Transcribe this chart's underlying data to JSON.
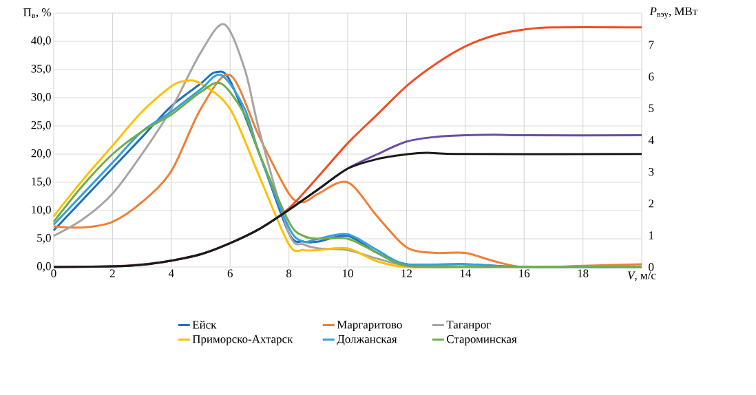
{
  "chart_data": {
    "type": "line",
    "xlabel": "*V*, м/с",
    "ylabel": "П$_{в}$, %",
    "y2label": "*P*$_{вэу}$, МВт",
    "xlim": [
      0,
      20
    ],
    "ylim": [
      0,
      45
    ],
    "y2lim": [
      0,
      8
    ],
    "xticks": [
      0,
      2,
      4,
      6,
      8,
      10,
      12,
      14,
      16,
      18,
      {
        "value": 20,
        "label": null
      }
    ],
    "yticks": [
      {
        "value": 0,
        "label": "0,0"
      },
      {
        "value": 5,
        "label": "5,0"
      },
      {
        "value": 10,
        "label": "10,0"
      },
      {
        "value": 15,
        "label": "15,0"
      },
      {
        "value": 20,
        "label": "20,0"
      },
      {
        "value": 25,
        "label": "25,0"
      },
      {
        "value": 30,
        "label": "30,0"
      },
      {
        "value": 35,
        "label": "35,0"
      },
      {
        "value": 40,
        "label": "40,0"
      },
      {
        "value": 45,
        "label": null
      }
    ],
    "y2ticks": [
      0,
      1,
      2,
      3,
      4,
      5,
      6,
      7
    ],
    "grid": true,
    "legend": "bottom",
    "marker": "none",
    "line_style": "solid",
    "series": [
      {
        "name": "Ейск",
        "color": "#1f6fbf",
        "x": [
          0,
          1,
          2,
          3,
          4,
          5,
          5.5,
          6,
          7,
          8,
          8.5,
          9,
          10,
          11,
          12,
          14,
          16,
          20
        ],
        "values": [
          6.5,
          12,
          17.5,
          23,
          28.5,
          32.5,
          34.5,
          33,
          20,
          6,
          4.5,
          4.5,
          5.5,
          2.5,
          0.5,
          0.5,
          0,
          0
        ]
      },
      {
        "name": "Маргаритово",
        "color": "#f07f35",
        "x": [
          0,
          1,
          2,
          3,
          4,
          5,
          6,
          7,
          8,
          8.5,
          9,
          10,
          11,
          12,
          13,
          14,
          15,
          16,
          18,
          20
        ],
        "values": [
          7.2,
          7,
          8,
          11.5,
          17,
          28,
          34,
          23,
          13,
          11.5,
          13,
          15,
          9,
          3.5,
          2.5,
          2.5,
          1,
          0,
          0.2,
          0.5
        ]
      },
      {
        "name": "Таганрог",
        "color": "#a5a5a5",
        "x": [
          0,
          1,
          2,
          3,
          4,
          5,
          5.8,
          6.5,
          7,
          8,
          8.5,
          9,
          10,
          11,
          12,
          14,
          16,
          20
        ],
        "values": [
          5.5,
          8.5,
          13,
          20,
          28,
          38,
          43,
          35,
          24,
          6,
          4,
          3.3,
          3,
          1.5,
          0.3,
          0,
          0,
          0
        ]
      },
      {
        "name": "Приморско-Ахтарск",
        "color": "#ffc000",
        "x": [
          0,
          1,
          2,
          3,
          4,
          4.5,
          5,
          6,
          7,
          8,
          8.5,
          9,
          10,
          11,
          12,
          14
        ],
        "values": [
          9,
          15.5,
          21.5,
          27.5,
          32,
          33,
          32.5,
          28,
          16,
          4,
          3,
          3,
          3.3,
          1,
          0,
          0
        ]
      },
      {
        "name": "Должанская",
        "color": "#36a0dc",
        "x": [
          0,
          1,
          2,
          3,
          4,
          5,
          5.7,
          6.5,
          7,
          8,
          8.5,
          9,
          10,
          11,
          12,
          14,
          16,
          20
        ],
        "values": [
          7.5,
          13,
          18.5,
          24,
          27.5,
          31.5,
          34,
          28,
          20,
          7,
          4.5,
          5,
          5.8,
          3,
          0.5,
          0.5,
          0,
          0
        ]
      },
      {
        "name": "Староминская",
        "color": "#70ad47",
        "x": [
          0,
          1,
          2,
          3,
          4,
          5,
          5.7,
          6.5,
          7,
          8,
          8.5,
          9,
          10,
          11,
          12,
          14,
          16,
          20
        ],
        "values": [
          8,
          14.5,
          20,
          24,
          27,
          31,
          32.5,
          27,
          20,
          8,
          5.5,
          5,
          5,
          2.5,
          0.2,
          0,
          0,
          0
        ]
      },
      {
        "color": "#f04e23",
        "axis": "y2",
        "x": [
          0,
          2,
          3,
          4,
          5,
          6,
          7,
          8,
          9,
          10,
          11,
          12,
          13,
          14,
          15,
          16,
          17,
          20
        ],
        "values": [
          0,
          0.02,
          0.08,
          0.2,
          0.4,
          0.75,
          1.2,
          1.85,
          2.85,
          3.9,
          4.8,
          5.7,
          6.4,
          6.95,
          7.3,
          7.48,
          7.55,
          7.55
        ]
      },
      {
        "color": "#6a4ca0",
        "axis": "y2",
        "x": [
          0,
          2,
          3,
          4,
          5,
          6,
          7,
          8,
          9,
          10,
          11,
          12,
          13,
          14,
          15,
          16,
          20
        ],
        "values": [
          0,
          0.02,
          0.07,
          0.2,
          0.4,
          0.75,
          1.2,
          1.8,
          2.45,
          3.1,
          3.55,
          3.95,
          4.1,
          4.15,
          4.17,
          4.15,
          4.15
        ]
      },
      {
        "color": "#1a1a1a",
        "axis": "y2",
        "x": [
          0,
          2,
          3,
          4,
          5,
          6,
          7,
          8,
          9,
          10,
          11,
          12,
          12.7,
          14,
          20
        ],
        "values": [
          0,
          0.02,
          0.07,
          0.2,
          0.4,
          0.75,
          1.2,
          1.8,
          2.45,
          3.1,
          3.4,
          3.55,
          3.6,
          3.56,
          3.56
        ]
      }
    ]
  }
}
